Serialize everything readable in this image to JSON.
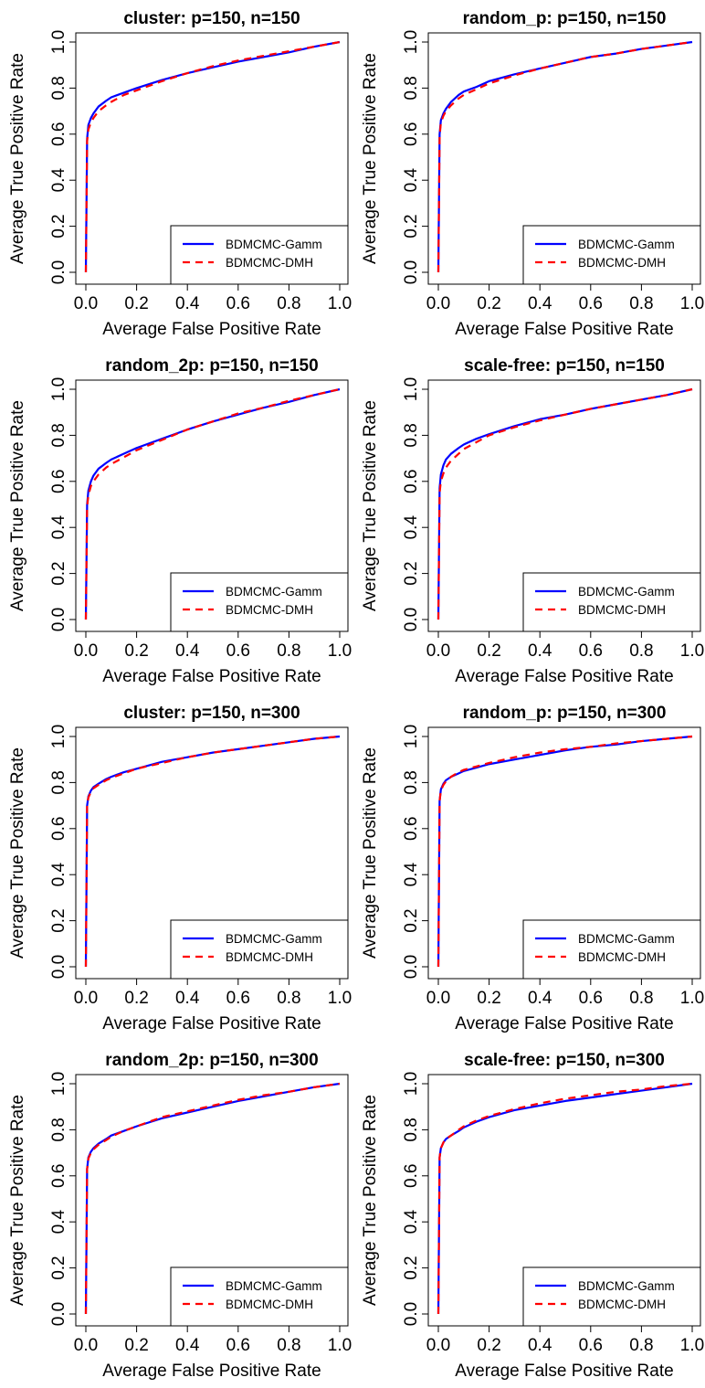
{
  "colors": {
    "gamm": "#0000ff",
    "dmh": "#ff0000",
    "axis": "#000000"
  },
  "chart_data": [
    {
      "type": "line",
      "title": "cluster: p=150, n=150",
      "xlabel": "Average False Positive Rate",
      "ylabel": "Average True Positive Rate",
      "xlim": [
        0,
        1
      ],
      "ylim": [
        0,
        1
      ],
      "xticks": [
        "0.0",
        "0.2",
        "0.4",
        "0.6",
        "0.8",
        "1.0"
      ],
      "yticks": [
        "0.0",
        "0.2",
        "0.4",
        "0.6",
        "0.8",
        "1.0"
      ],
      "grid": false,
      "legend_position": "bottom-right",
      "series": [
        {
          "name": "BDMCMC-Gamm",
          "x": [
            0,
            0.005,
            0.01,
            0.02,
            0.03,
            0.05,
            0.08,
            0.1,
            0.15,
            0.2,
            0.3,
            0.4,
            0.5,
            0.6,
            0.7,
            0.8,
            0.9,
            1.0
          ],
          "y": [
            0,
            0.58,
            0.64,
            0.67,
            0.69,
            0.72,
            0.745,
            0.76,
            0.78,
            0.8,
            0.835,
            0.865,
            0.89,
            0.915,
            0.935,
            0.955,
            0.98,
            1.0
          ]
        },
        {
          "name": "BDMCMC-DMH",
          "x": [
            0,
            0.005,
            0.01,
            0.02,
            0.03,
            0.05,
            0.08,
            0.1,
            0.15,
            0.2,
            0.3,
            0.4,
            0.5,
            0.6,
            0.7,
            0.8,
            0.9,
            1.0
          ],
          "y": [
            0,
            0.57,
            0.62,
            0.65,
            0.67,
            0.7,
            0.725,
            0.74,
            0.77,
            0.79,
            0.83,
            0.865,
            0.895,
            0.92,
            0.94,
            0.96,
            0.98,
            1.0
          ]
        }
      ]
    },
    {
      "type": "line",
      "title": "random_p: p=150, n=150",
      "xlabel": "Average False Positive Rate",
      "ylabel": "Average True Positive Rate",
      "xlim": [
        0,
        1
      ],
      "ylim": [
        0,
        1
      ],
      "xticks": [
        "0.0",
        "0.2",
        "0.4",
        "0.6",
        "0.8",
        "1.0"
      ],
      "yticks": [
        "0.0",
        "0.2",
        "0.4",
        "0.6",
        "0.8",
        "1.0"
      ],
      "grid": false,
      "legend_position": "bottom-right",
      "series": [
        {
          "name": "BDMCMC-Gamm",
          "x": [
            0,
            0.005,
            0.01,
            0.02,
            0.03,
            0.05,
            0.08,
            0.1,
            0.15,
            0.2,
            0.3,
            0.4,
            0.5,
            0.6,
            0.7,
            0.8,
            0.9,
            1.0
          ],
          "y": [
            0,
            0.6,
            0.66,
            0.69,
            0.71,
            0.74,
            0.77,
            0.785,
            0.805,
            0.83,
            0.86,
            0.885,
            0.91,
            0.935,
            0.95,
            0.97,
            0.985,
            1.0
          ]
        },
        {
          "name": "BDMCMC-DMH",
          "x": [
            0,
            0.005,
            0.01,
            0.02,
            0.03,
            0.05,
            0.08,
            0.1,
            0.15,
            0.2,
            0.3,
            0.4,
            0.5,
            0.6,
            0.7,
            0.8,
            0.9,
            1.0
          ],
          "y": [
            0,
            0.59,
            0.65,
            0.68,
            0.7,
            0.725,
            0.755,
            0.77,
            0.795,
            0.82,
            0.855,
            0.885,
            0.91,
            0.935,
            0.95,
            0.97,
            0.985,
            1.0
          ]
        }
      ]
    },
    {
      "type": "line",
      "title": "random_2p: p=150, n=150",
      "xlabel": "Average False Positive Rate",
      "ylabel": "Average True Positive Rate",
      "xlim": [
        0,
        1
      ],
      "ylim": [
        0,
        1
      ],
      "xticks": [
        "0.0",
        "0.2",
        "0.4",
        "0.6",
        "0.8",
        "1.0"
      ],
      "yticks": [
        "0.0",
        "0.2",
        "0.4",
        "0.6",
        "0.8",
        "1.0"
      ],
      "grid": false,
      "legend_position": "bottom-right",
      "series": [
        {
          "name": "BDMCMC-Gamm",
          "x": [
            0,
            0.005,
            0.01,
            0.02,
            0.03,
            0.05,
            0.08,
            0.1,
            0.15,
            0.2,
            0.3,
            0.4,
            0.5,
            0.6,
            0.7,
            0.8,
            0.9,
            1.0
          ],
          "y": [
            0,
            0.5,
            0.56,
            0.6,
            0.625,
            0.655,
            0.68,
            0.695,
            0.72,
            0.745,
            0.785,
            0.825,
            0.86,
            0.89,
            0.92,
            0.945,
            0.975,
            1.0
          ]
        },
        {
          "name": "BDMCMC-DMH",
          "x": [
            0,
            0.005,
            0.01,
            0.02,
            0.03,
            0.05,
            0.08,
            0.1,
            0.15,
            0.2,
            0.3,
            0.4,
            0.5,
            0.6,
            0.7,
            0.8,
            0.9,
            1.0
          ],
          "y": [
            0,
            0.49,
            0.54,
            0.58,
            0.6,
            0.63,
            0.66,
            0.675,
            0.705,
            0.735,
            0.78,
            0.825,
            0.86,
            0.895,
            0.92,
            0.95,
            0.975,
            1.0
          ]
        }
      ]
    },
    {
      "type": "line",
      "title": "scale-free: p=150, n=150",
      "xlabel": "Average False Positive Rate",
      "ylabel": "Average True Positive Rate",
      "xlim": [
        0,
        1
      ],
      "ylim": [
        0,
        1
      ],
      "xticks": [
        "0.0",
        "0.2",
        "0.4",
        "0.6",
        "0.8",
        "1.0"
      ],
      "yticks": [
        "0.0",
        "0.2",
        "0.4",
        "0.6",
        "0.8",
        "1.0"
      ],
      "grid": false,
      "legend_position": "bottom-right",
      "series": [
        {
          "name": "BDMCMC-Gamm",
          "x": [
            0,
            0.005,
            0.01,
            0.02,
            0.03,
            0.05,
            0.08,
            0.1,
            0.15,
            0.2,
            0.3,
            0.4,
            0.5,
            0.6,
            0.7,
            0.8,
            0.9,
            1.0
          ],
          "y": [
            0,
            0.57,
            0.63,
            0.67,
            0.695,
            0.72,
            0.745,
            0.76,
            0.785,
            0.805,
            0.84,
            0.87,
            0.89,
            0.915,
            0.935,
            0.955,
            0.975,
            1.0
          ]
        },
        {
          "name": "BDMCMC-DMH",
          "x": [
            0,
            0.005,
            0.01,
            0.02,
            0.03,
            0.05,
            0.08,
            0.1,
            0.15,
            0.2,
            0.3,
            0.4,
            0.5,
            0.6,
            0.7,
            0.8,
            0.9,
            1.0
          ],
          "y": [
            0,
            0.55,
            0.6,
            0.635,
            0.66,
            0.69,
            0.72,
            0.74,
            0.77,
            0.8,
            0.835,
            0.865,
            0.89,
            0.915,
            0.935,
            0.955,
            0.975,
            1.0
          ]
        }
      ]
    },
    {
      "type": "line",
      "title": "cluster: p=150, n=300",
      "xlabel": "Average False Positive Rate",
      "ylabel": "Average True Positive Rate",
      "xlim": [
        0,
        1
      ],
      "ylim": [
        0,
        1
      ],
      "xticks": [
        "0.0",
        "0.2",
        "0.4",
        "0.6",
        "0.8",
        "1.0"
      ],
      "yticks": [
        "0.0",
        "0.2",
        "0.4",
        "0.6",
        "0.8",
        "1.0"
      ],
      "grid": false,
      "legend_position": "bottom-right",
      "series": [
        {
          "name": "BDMCMC-Gamm",
          "x": [
            0,
            0.005,
            0.01,
            0.02,
            0.03,
            0.05,
            0.08,
            0.1,
            0.15,
            0.2,
            0.3,
            0.4,
            0.5,
            0.6,
            0.7,
            0.8,
            0.9,
            1.0
          ],
          "y": [
            0,
            0.7,
            0.74,
            0.765,
            0.78,
            0.795,
            0.815,
            0.825,
            0.845,
            0.86,
            0.89,
            0.91,
            0.93,
            0.945,
            0.96,
            0.975,
            0.99,
            1.0
          ]
        },
        {
          "name": "BDMCMC-DMH",
          "x": [
            0,
            0.005,
            0.01,
            0.02,
            0.03,
            0.05,
            0.08,
            0.1,
            0.15,
            0.2,
            0.3,
            0.4,
            0.5,
            0.6,
            0.7,
            0.8,
            0.9,
            1.0
          ],
          "y": [
            0,
            0.7,
            0.735,
            0.76,
            0.775,
            0.79,
            0.81,
            0.82,
            0.84,
            0.86,
            0.885,
            0.91,
            0.93,
            0.945,
            0.96,
            0.975,
            0.99,
            1.0
          ]
        }
      ]
    },
    {
      "type": "line",
      "title": "random_p: p=150, n=300",
      "xlabel": "Average False Positive Rate",
      "ylabel": "Average True Positive Rate",
      "xlim": [
        0,
        1
      ],
      "ylim": [
        0,
        1
      ],
      "xticks": [
        "0.0",
        "0.2",
        "0.4",
        "0.6",
        "0.8",
        "1.0"
      ],
      "yticks": [
        "0.0",
        "0.2",
        "0.4",
        "0.6",
        "0.8",
        "1.0"
      ],
      "grid": false,
      "legend_position": "bottom-right",
      "series": [
        {
          "name": "BDMCMC-Gamm",
          "x": [
            0,
            0.005,
            0.01,
            0.02,
            0.03,
            0.05,
            0.08,
            0.1,
            0.15,
            0.2,
            0.3,
            0.4,
            0.5,
            0.6,
            0.7,
            0.8,
            0.9,
            1.0
          ],
          "y": [
            0,
            0.72,
            0.77,
            0.795,
            0.81,
            0.825,
            0.84,
            0.85,
            0.865,
            0.88,
            0.9,
            0.92,
            0.94,
            0.955,
            0.965,
            0.98,
            0.99,
            1.0
          ]
        },
        {
          "name": "BDMCMC-DMH",
          "x": [
            0,
            0.005,
            0.01,
            0.02,
            0.03,
            0.05,
            0.08,
            0.1,
            0.15,
            0.2,
            0.3,
            0.4,
            0.5,
            0.6,
            0.7,
            0.8,
            0.9,
            1.0
          ],
          "y": [
            0,
            0.72,
            0.765,
            0.79,
            0.805,
            0.825,
            0.845,
            0.855,
            0.87,
            0.885,
            0.91,
            0.93,
            0.945,
            0.955,
            0.97,
            0.98,
            0.99,
            1.0
          ]
        }
      ]
    },
    {
      "type": "line",
      "title": "random_2p: p=150, n=300",
      "xlabel": "Average False Positive Rate",
      "ylabel": "Average True Positive Rate",
      "xlim": [
        0,
        1
      ],
      "ylim": [
        0,
        1
      ],
      "xticks": [
        "0.0",
        "0.2",
        "0.4",
        "0.6",
        "0.8",
        "1.0"
      ],
      "yticks": [
        "0.0",
        "0.2",
        "0.4",
        "0.6",
        "0.8",
        "1.0"
      ],
      "grid": false,
      "legend_position": "bottom-right",
      "series": [
        {
          "name": "BDMCMC-Gamm",
          "x": [
            0,
            0.005,
            0.01,
            0.02,
            0.03,
            0.05,
            0.08,
            0.1,
            0.15,
            0.2,
            0.3,
            0.4,
            0.5,
            0.6,
            0.7,
            0.8,
            0.9,
            1.0
          ],
          "y": [
            0,
            0.63,
            0.68,
            0.705,
            0.72,
            0.74,
            0.76,
            0.775,
            0.795,
            0.815,
            0.85,
            0.875,
            0.9,
            0.925,
            0.945,
            0.965,
            0.985,
            1.0
          ]
        },
        {
          "name": "BDMCMC-DMH",
          "x": [
            0,
            0.005,
            0.01,
            0.02,
            0.03,
            0.05,
            0.08,
            0.1,
            0.15,
            0.2,
            0.3,
            0.4,
            0.5,
            0.6,
            0.7,
            0.8,
            0.9,
            1.0
          ],
          "y": [
            0,
            0.63,
            0.675,
            0.7,
            0.715,
            0.735,
            0.755,
            0.77,
            0.795,
            0.815,
            0.855,
            0.88,
            0.905,
            0.93,
            0.95,
            0.965,
            0.985,
            1.0
          ]
        }
      ]
    },
    {
      "type": "line",
      "title": "scale-free: p=150, n=300",
      "xlabel": "Average False Positive Rate",
      "ylabel": "Average True Positive Rate",
      "xlim": [
        0,
        1
      ],
      "ylim": [
        0,
        1
      ],
      "xticks": [
        "0.0",
        "0.2",
        "0.4",
        "0.6",
        "0.8",
        "1.0"
      ],
      "yticks": [
        "0.0",
        "0.2",
        "0.4",
        "0.6",
        "0.8",
        "1.0"
      ],
      "grid": false,
      "legend_position": "bottom-right",
      "series": [
        {
          "name": "BDMCMC-Gamm",
          "x": [
            0,
            0.005,
            0.01,
            0.02,
            0.03,
            0.05,
            0.08,
            0.1,
            0.15,
            0.2,
            0.3,
            0.4,
            0.5,
            0.6,
            0.7,
            0.8,
            0.9,
            1.0
          ],
          "y": [
            0,
            0.68,
            0.72,
            0.745,
            0.76,
            0.775,
            0.795,
            0.81,
            0.835,
            0.855,
            0.885,
            0.905,
            0.925,
            0.94,
            0.955,
            0.97,
            0.985,
            1.0
          ]
        },
        {
          "name": "BDMCMC-DMH",
          "x": [
            0,
            0.005,
            0.01,
            0.02,
            0.03,
            0.05,
            0.08,
            0.1,
            0.15,
            0.2,
            0.3,
            0.4,
            0.5,
            0.6,
            0.7,
            0.8,
            0.9,
            1.0
          ],
          "y": [
            0,
            0.68,
            0.72,
            0.745,
            0.76,
            0.775,
            0.8,
            0.815,
            0.84,
            0.86,
            0.89,
            0.915,
            0.935,
            0.95,
            0.965,
            0.975,
            0.99,
            1.0
          ]
        }
      ]
    }
  ]
}
